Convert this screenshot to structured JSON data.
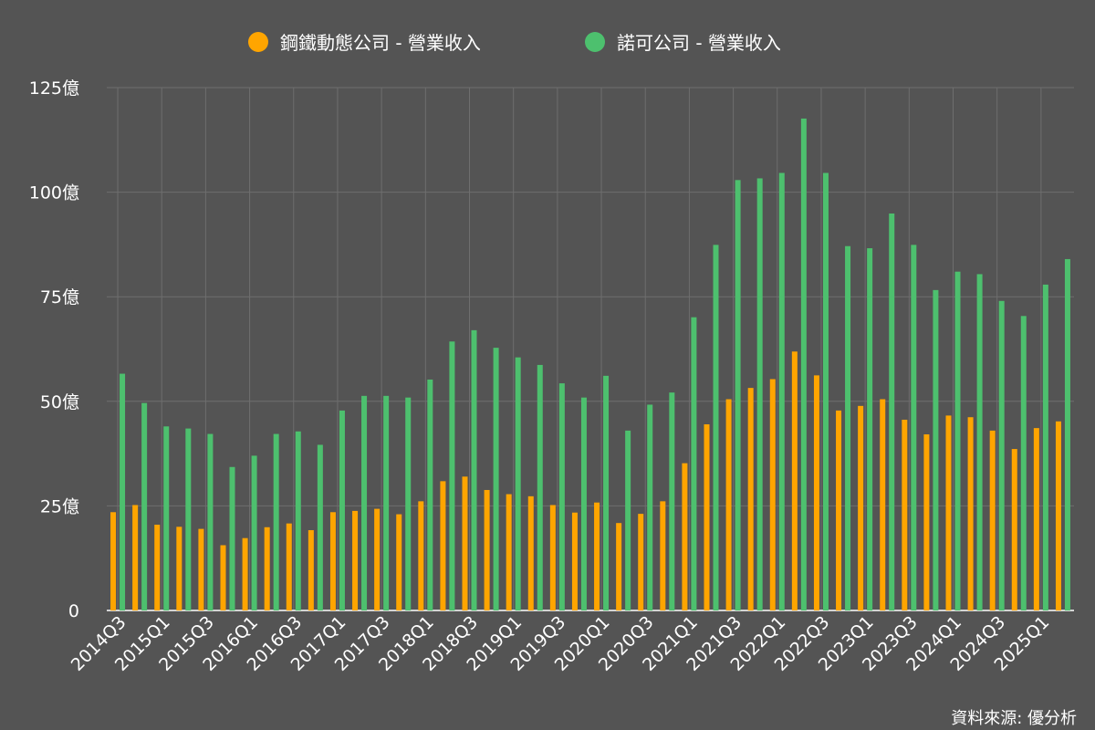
{
  "source_note": "資料來源: 優分析",
  "chart_data": {
    "type": "bar",
    "categories": [
      "2014Q3",
      "2014Q4",
      "2015Q1",
      "2015Q2",
      "2015Q3",
      "2015Q4",
      "2016Q1",
      "2016Q2",
      "2016Q3",
      "2016Q4",
      "2017Q1",
      "2017Q2",
      "2017Q3",
      "2017Q4",
      "2018Q1",
      "2018Q2",
      "2018Q3",
      "2018Q4",
      "2019Q1",
      "2019Q2",
      "2019Q3",
      "2019Q4",
      "2020Q1",
      "2020Q2",
      "2020Q3",
      "2020Q4",
      "2021Q1",
      "2021Q2",
      "2021Q3",
      "2021Q4",
      "2022Q1",
      "2022Q2",
      "2022Q3",
      "2022Q4",
      "2023Q1",
      "2023Q2",
      "2023Q3",
      "2023Q4",
      "2024Q1",
      "2024Q2",
      "2024Q3",
      "2024Q4",
      "2025Q1",
      "2025Q2"
    ],
    "series": [
      {
        "name": "鋼鐵動態公司 - 營業收入",
        "color": "#FFA500",
        "values": [
          23.5,
          25.2,
          20.5,
          20.0,
          19.5,
          15.6,
          17.3,
          19.9,
          20.8,
          19.2,
          23.5,
          23.8,
          24.3,
          23.0,
          26.1,
          30.9,
          32.0,
          28.8,
          27.8,
          27.3,
          25.2,
          23.4,
          25.8,
          20.9,
          23.1,
          26.1,
          35.2,
          44.5,
          50.5,
          53.2,
          55.3,
          61.9,
          56.2,
          47.8,
          48.9,
          50.5,
          45.6,
          42.1,
          46.6,
          46.2,
          43.0,
          38.6,
          43.6,
          45.2
        ]
      },
      {
        "name": "諾可公司 - 營業收入",
        "color": "#4DC06E",
        "values": [
          56.6,
          49.6,
          44.0,
          43.5,
          42.2,
          34.3,
          37.0,
          42.2,
          42.8,
          39.6,
          47.8,
          51.3,
          51.3,
          50.9,
          55.2,
          64.3,
          67.0,
          62.8,
          60.5,
          58.7,
          54.3,
          50.9,
          56.1,
          43.0,
          49.2,
          52.1,
          70.1,
          87.4,
          102.9,
          103.3,
          104.6,
          117.6,
          104.6,
          87.1,
          86.6,
          94.9,
          87.4,
          76.6,
          81.0,
          80.4,
          74.0,
          70.4,
          77.9,
          84.0
        ]
      }
    ],
    "x_tick_labels": [
      "2014Q3",
      "2015Q1",
      "2015Q3",
      "2016Q1",
      "2016Q3",
      "2017Q1",
      "2017Q3",
      "2018Q1",
      "2018Q3",
      "2019Q1",
      "2019Q3",
      "2020Q1",
      "2020Q3",
      "2021Q1",
      "2021Q3",
      "2022Q1",
      "2022Q3",
      "2023Q1",
      "2023Q3",
      "2024Q1",
      "2024Q3",
      "2025Q1"
    ],
    "y_ticks": [
      0,
      25,
      50,
      75,
      100,
      125
    ],
    "y_tick_labels": [
      "0",
      "25億",
      "50億",
      "75億",
      "100億",
      "125億"
    ],
    "ylim": [
      0,
      125
    ],
    "grid": true,
    "legend_position": "top-center"
  }
}
